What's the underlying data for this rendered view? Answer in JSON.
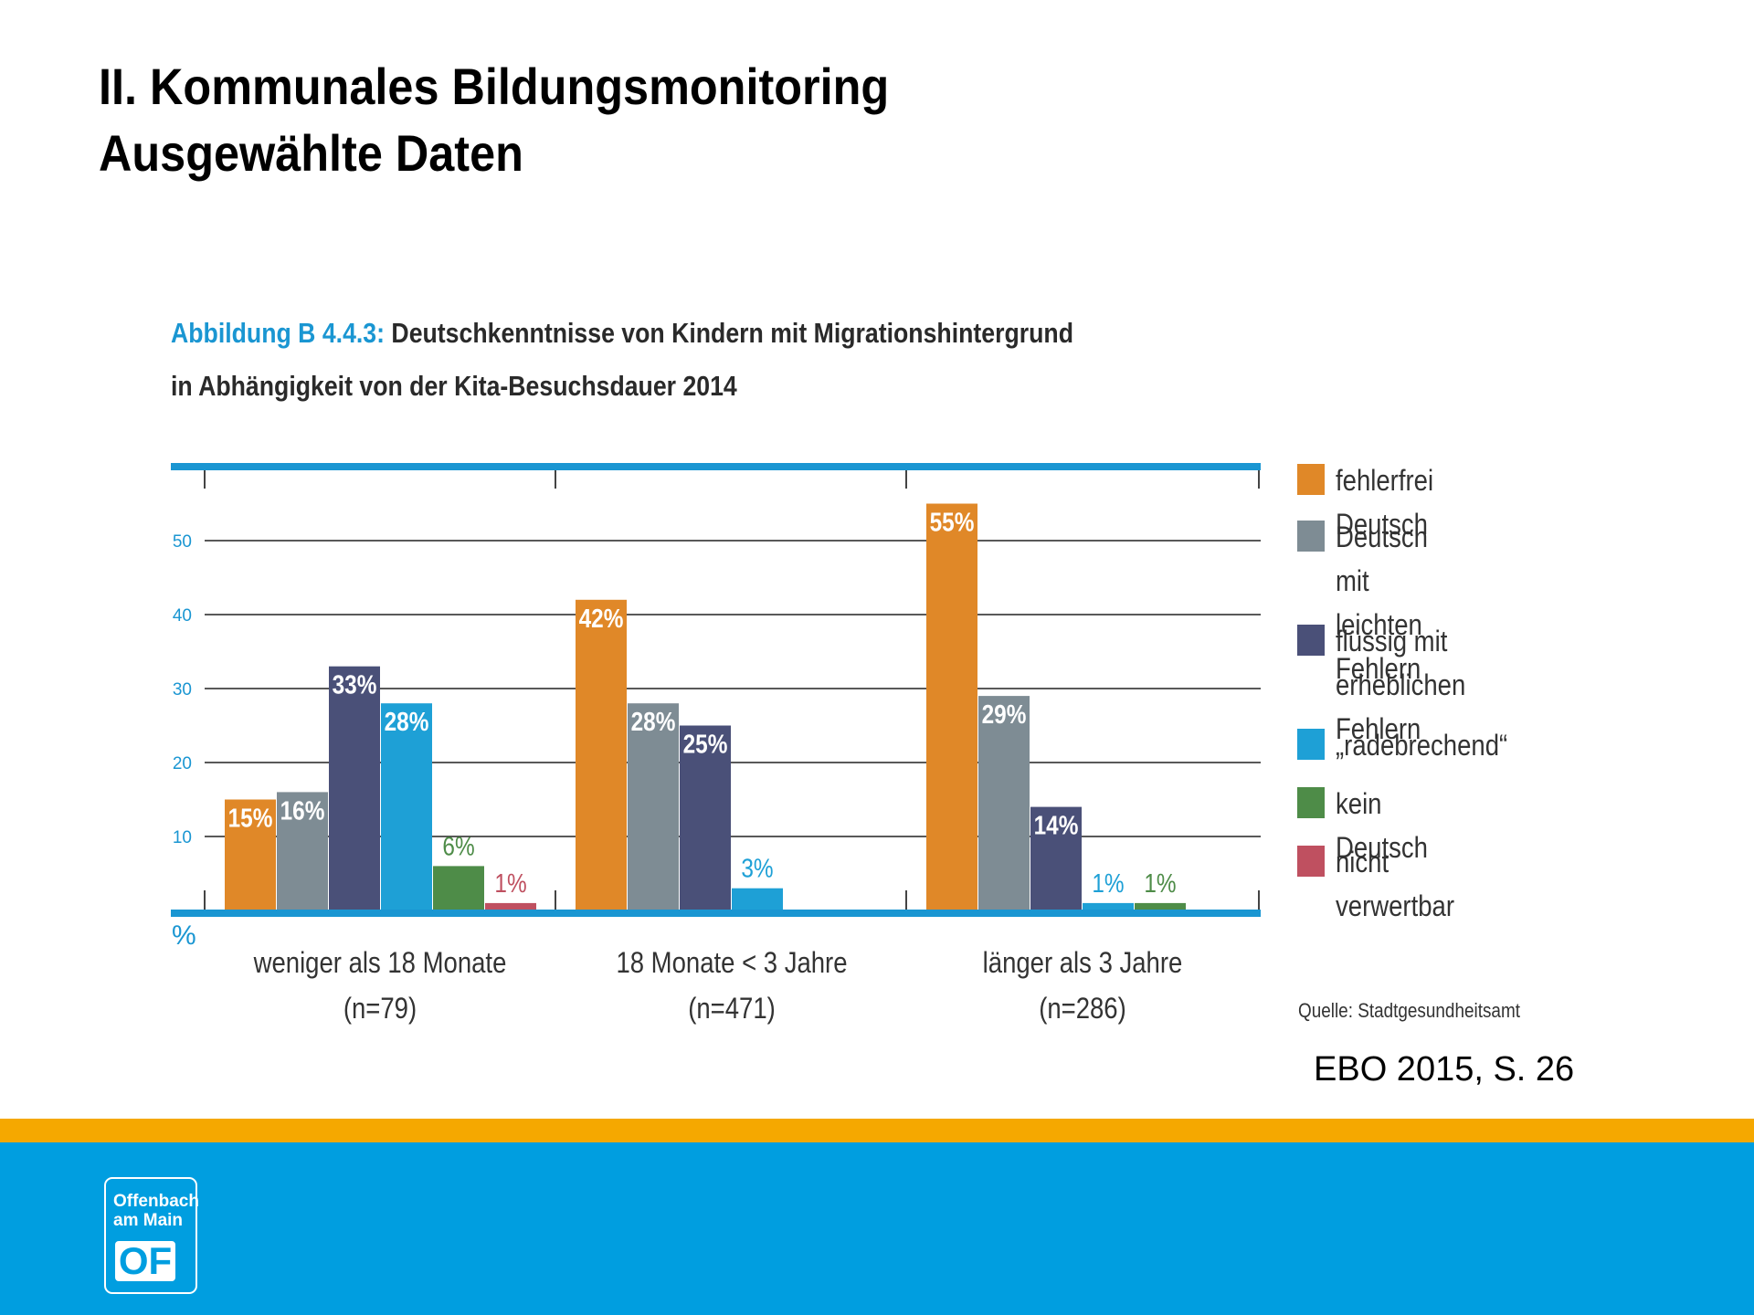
{
  "slide": {
    "title_line1": "II. Kommunales Bildungsmonitoring",
    "title_line2": "Ausgewählte Daten"
  },
  "figure": {
    "label": "Abbildung B 4.4.3:",
    "title_rest": " Deutschkenntnisse von Kindern mit Migrationshintergrund",
    "title_line2": "in Abhängigkeit von der Kita-Besuchsdauer 2014",
    "source": "Quelle: Stadtgesundheitsamt"
  },
  "citation": "EBO 2015, S. 26",
  "logo": {
    "text": "Offenbach\nam Main",
    "mark": "OF"
  },
  "colors": {
    "accent_blue": "#1a96d2",
    "footer_blue": "#009ee0",
    "footer_orange": "#f5a800",
    "fehlerfrei": "#e08828",
    "leichte_fehler": "#7e8c94",
    "erhebliche_fehler": "#4a5078",
    "radebrechend": "#1ea0d6",
    "kein_deutsch": "#4e8c48",
    "nicht_verwertbar": "#bf5060"
  },
  "chart_data": {
    "type": "bar",
    "title": "Deutschkenntnisse von Kindern mit Migrationshintergrund in Abhängigkeit von der Kita-Besuchsdauer 2014",
    "ylabel": "%",
    "ylim": [
      0,
      60
    ],
    "yticks": [
      10,
      20,
      30,
      40,
      50
    ],
    "grid": true,
    "categories": [
      {
        "label": "weniger als 18 Monate",
        "n": "(n=79)"
      },
      {
        "label": "18 Monate < 3 Jahre",
        "n": "(n=471)"
      },
      {
        "label": "länger als 3 Jahre",
        "n": "(n=286)"
      }
    ],
    "series": [
      {
        "name": "fehlerfrei Deutsch",
        "color": "#e08828",
        "values": [
          15,
          42,
          55
        ]
      },
      {
        "name": "Deutsch mit\nleichten Fehlern",
        "color": "#7e8c94",
        "values": [
          16,
          28,
          29
        ]
      },
      {
        "name": "flüssig mit\nerheblichen Fehlern",
        "color": "#4a5078",
        "values": [
          33,
          25,
          14
        ]
      },
      {
        "name": "„radebrechend“",
        "color": "#1ea0d6",
        "values": [
          28,
          3,
          1
        ]
      },
      {
        "name": "kein Deutsch",
        "color": "#4e8c48",
        "values": [
          6,
          0,
          1
        ]
      },
      {
        "name": "nicht verwertbar",
        "color": "#bf5060",
        "values": [
          1,
          0,
          0
        ]
      }
    ],
    "bar_labels": [
      [
        "15%",
        "42%",
        "55%"
      ],
      [
        "16%",
        "28%",
        "29%"
      ],
      [
        "33%",
        "25%",
        "14%"
      ],
      [
        "28%",
        "3%",
        "1%"
      ],
      [
        "6%",
        "",
        "1%"
      ],
      [
        "1%",
        "",
        ""
      ]
    ],
    "legend_position": "right"
  }
}
